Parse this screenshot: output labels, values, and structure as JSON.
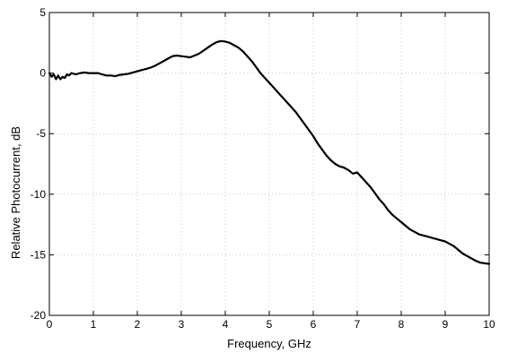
{
  "chart_data": {
    "type": "line",
    "title": "",
    "xlabel": "Frequency, GHz",
    "ylabel": "Relative Photocurrent, dB",
    "xlim": [
      0,
      10
    ],
    "ylim": [
      -20,
      5
    ],
    "xticks": [
      0,
      1,
      2,
      3,
      4,
      5,
      6,
      7,
      8,
      9,
      10
    ],
    "yticks": [
      5,
      0,
      -5,
      -10,
      -15,
      -20
    ],
    "grid": true,
    "series": [
      {
        "color": "#000000",
        "x": [
          0,
          0.05,
          0.1,
          0.15,
          0.2,
          0.25,
          0.3,
          0.35,
          0.4,
          0.45,
          0.5,
          0.6,
          0.7,
          0.8,
          0.9,
          1.0,
          1.1,
          1.2,
          1.3,
          1.4,
          1.5,
          1.6,
          1.7,
          1.8,
          1.9,
          2.0,
          2.1,
          2.2,
          2.3,
          2.4,
          2.5,
          2.6,
          2.7,
          2.8,
          2.9,
          3.0,
          3.1,
          3.2,
          3.3,
          3.4,
          3.5,
          3.6,
          3.7,
          3.8,
          3.9,
          4.0,
          4.1,
          4.2,
          4.3,
          4.4,
          4.5,
          4.6,
          4.7,
          4.8,
          4.9,
          5.0,
          5.1,
          5.2,
          5.3,
          5.4,
          5.5,
          5.6,
          5.7,
          5.8,
          5.9,
          6.0,
          6.1,
          6.2,
          6.3,
          6.4,
          6.5,
          6.6,
          6.7,
          6.8,
          6.9,
          7.0,
          7.1,
          7.2,
          7.3,
          7.4,
          7.5,
          7.6,
          7.7,
          7.8,
          7.9,
          8.0,
          8.1,
          8.2,
          8.3,
          8.4,
          8.5,
          8.6,
          8.7,
          8.8,
          8.9,
          9.0,
          9.1,
          9.2,
          9.3,
          9.4,
          9.5,
          9.6,
          9.7,
          9.8,
          9.9,
          10.0
        ],
        "y": [
          0.0,
          -0.3,
          -0.1,
          -0.5,
          -0.2,
          -0.5,
          -0.3,
          -0.4,
          -0.1,
          -0.2,
          0.0,
          -0.1,
          0.0,
          0.05,
          0.0,
          0.0,
          0.0,
          -0.1,
          -0.2,
          -0.2,
          -0.25,
          -0.15,
          -0.1,
          -0.05,
          0.05,
          0.15,
          0.25,
          0.35,
          0.45,
          0.6,
          0.8,
          1.0,
          1.2,
          1.4,
          1.45,
          1.4,
          1.35,
          1.3,
          1.45,
          1.6,
          1.85,
          2.1,
          2.35,
          2.55,
          2.65,
          2.6,
          2.5,
          2.3,
          2.1,
          1.8,
          1.4,
          1.0,
          0.5,
          0.0,
          -0.4,
          -0.8,
          -1.2,
          -1.6,
          -2.0,
          -2.4,
          -2.8,
          -3.2,
          -3.7,
          -4.2,
          -4.7,
          -5.2,
          -5.8,
          -6.3,
          -6.8,
          -7.2,
          -7.5,
          -7.7,
          -7.8,
          -8.0,
          -8.3,
          -8.2,
          -8.6,
          -9.0,
          -9.4,
          -9.9,
          -10.4,
          -10.8,
          -11.3,
          -11.7,
          -12.0,
          -12.3,
          -12.6,
          -12.9,
          -13.1,
          -13.3,
          -13.4,
          -13.5,
          -13.6,
          -13.7,
          -13.8,
          -13.9,
          -14.1,
          -14.3,
          -14.6,
          -14.9,
          -15.1,
          -15.3,
          -15.5,
          -15.65,
          -15.7,
          -15.75
        ]
      }
    ]
  }
}
